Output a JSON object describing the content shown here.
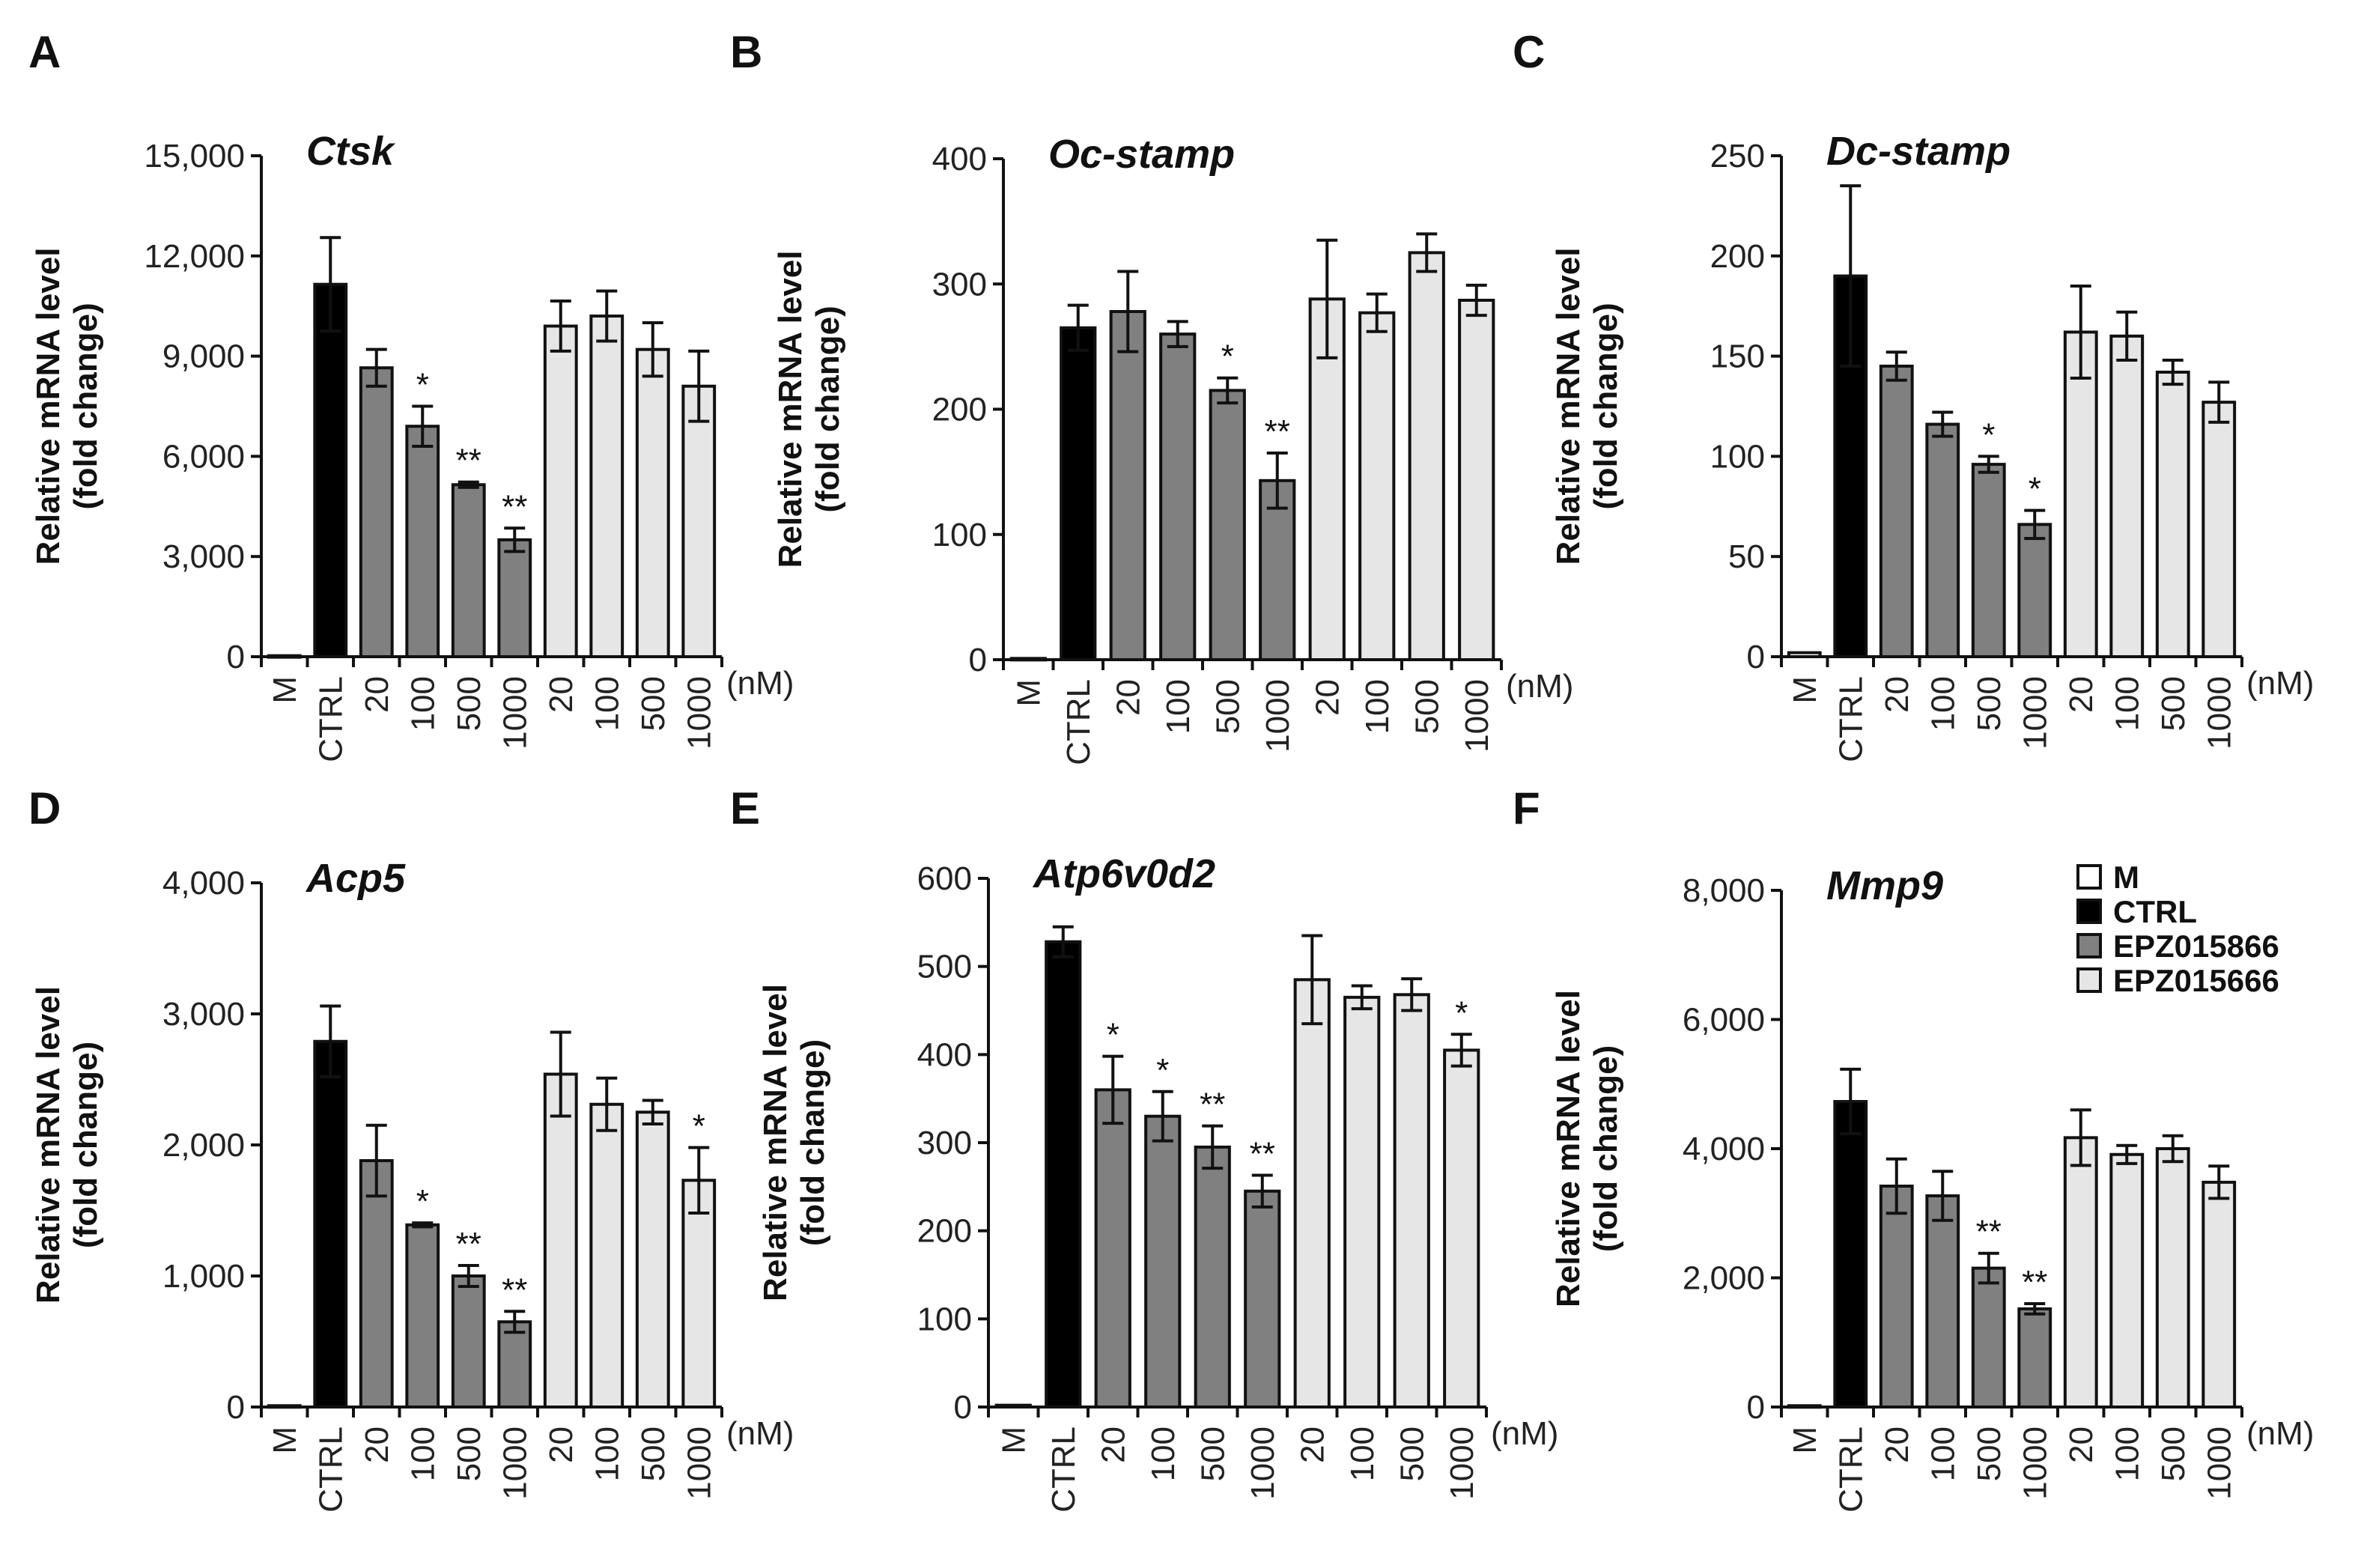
{
  "colors": {
    "M": "#ffffff",
    "CTRL": "#000000",
    "EPZ015866": "#808080",
    "EPZ015666": "#e6e6e6"
  },
  "shared": {
    "ylabel_line1": "Relative mRNA level",
    "ylabel_line2": "(fold change)",
    "unit": "(nM)",
    "categories": [
      "M",
      "CTRL",
      "20",
      "100",
      "500",
      "1000",
      "20",
      "100",
      "500",
      "1000"
    ],
    "groups": [
      "M",
      "CTRL",
      "EPZ015866",
      "EPZ015866",
      "EPZ015866",
      "EPZ015866",
      "EPZ015666",
      "EPZ015666",
      "EPZ015666",
      "EPZ015666"
    ]
  },
  "legend": [
    "M",
    "CTRL",
    "EPZ015866",
    "EPZ015666"
  ],
  "chart_data": [
    {
      "panel": "A",
      "type": "bar",
      "title": "Ctsk",
      "ylim": [
        0,
        15000
      ],
      "yticks": [
        "0",
        "3,000",
        "6,000",
        "9,000",
        "12,000",
        "15,000"
      ],
      "values": [
        30,
        11150,
        8650,
        6900,
        5150,
        3500,
        9900,
        10200,
        9200,
        8100
      ],
      "errors": [
        0,
        1400,
        550,
        600,
        80,
        350,
        750,
        750,
        800,
        1050
      ],
      "significance": [
        "",
        "",
        "",
        "*",
        "**",
        "**",
        "",
        "",
        "",
        ""
      ]
    },
    {
      "panel": "B",
      "type": "bar",
      "title": "Oc-stamp",
      "ylim": [
        0,
        400
      ],
      "yticks": [
        "0",
        "100",
        "200",
        "300",
        "400"
      ],
      "values": [
        1,
        265,
        278,
        260,
        215,
        143,
        288,
        277,
        325,
        287
      ],
      "errors": [
        0,
        18,
        32,
        10,
        10,
        22,
        47,
        15,
        15,
        12
      ],
      "significance": [
        "",
        "",
        "",
        "",
        "*",
        "**",
        "",
        "",
        "",
        ""
      ]
    },
    {
      "panel": "C",
      "type": "bar",
      "title": "Dc-stamp",
      "ylim": [
        0,
        250
      ],
      "yticks": [
        "0",
        "50",
        "100",
        "150",
        "200",
        "250"
      ],
      "values": [
        2,
        190,
        145,
        116,
        96,
        66,
        162,
        160,
        142,
        127
      ],
      "errors": [
        0,
        45,
        7,
        6,
        4,
        7,
        23,
        12,
        6,
        10
      ],
      "significance": [
        "",
        "",
        "",
        "",
        "*",
        "*",
        "",
        "",
        "",
        ""
      ]
    },
    {
      "panel": "D",
      "type": "bar",
      "title": "Acp5",
      "ylim": [
        0,
        4000
      ],
      "yticks": [
        "0",
        "1,000",
        "2,000",
        "3,000",
        "4,000"
      ],
      "values": [
        10,
        2790,
        1880,
        1390,
        1000,
        650,
        2540,
        2310,
        2250,
        1730
      ],
      "errors": [
        0,
        270,
        270,
        15,
        80,
        80,
        320,
        200,
        90,
        250
      ],
      "significance": [
        "",
        "",
        "",
        "*",
        "**",
        "**",
        "",
        "",
        "",
        "*"
      ]
    },
    {
      "panel": "E",
      "type": "bar",
      "title": "Atp6v0d2",
      "ylim": [
        0,
        600
      ],
      "yticks": [
        "0",
        "100",
        "200",
        "300",
        "400",
        "500",
        "600"
      ],
      "values": [
        2,
        528,
        360,
        330,
        295,
        245,
        485,
        465,
        468,
        405
      ],
      "errors": [
        0,
        17,
        38,
        28,
        24,
        18,
        50,
        13,
        18,
        18
      ],
      "significance": [
        "",
        "",
        "*",
        "*",
        "**",
        "**",
        "",
        "",
        "",
        "*"
      ]
    },
    {
      "panel": "F",
      "type": "bar",
      "title": "Mmp9",
      "ylim": [
        0,
        8000
      ],
      "yticks": [
        "0",
        "2,000",
        "4,000",
        "6,000",
        "8,000"
      ],
      "values": [
        20,
        4730,
        3420,
        3270,
        2150,
        1520,
        4170,
        3910,
        4000,
        3480
      ],
      "errors": [
        0,
        500,
        420,
        380,
        230,
        80,
        430,
        140,
        200,
        250
      ],
      "significance": [
        "",
        "",
        "",
        "",
        "**",
        "**",
        "",
        "",
        "",
        ""
      ]
    }
  ]
}
